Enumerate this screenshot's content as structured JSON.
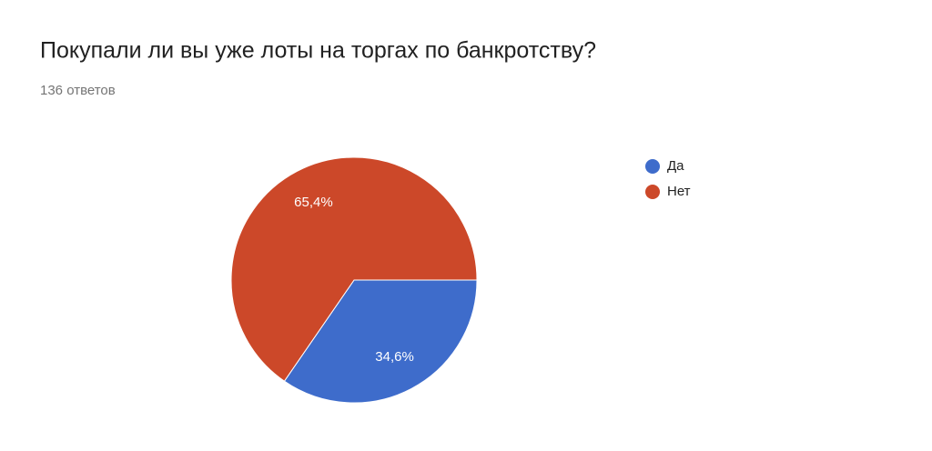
{
  "chart_data": {
    "type": "pie",
    "title": "Покупали ли вы уже лоты на торгах по банкротству?",
    "subtitle": "136 ответов",
    "categories": [
      "Да",
      "Нет"
    ],
    "values": [
      34.6,
      65.4
    ],
    "value_labels": [
      "34,6%",
      "65,4%"
    ],
    "colors": [
      "#3e6ccb",
      "#cc4829"
    ]
  }
}
